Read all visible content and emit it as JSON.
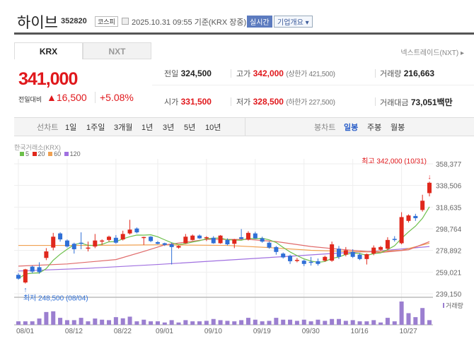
{
  "header": {
    "title": "하이브",
    "code": "352820",
    "market": "코스피",
    "datetime": "2025.10.31 09:55 기준(KRX 장중)",
    "realtime": "실시간",
    "company_info": "기업개요 ▾"
  },
  "tabs": [
    {
      "label": "KRX",
      "active": true
    },
    {
      "label": "NXT",
      "active": false
    }
  ],
  "nxt_link": "넥스트레이드(NXT) ▸",
  "quote": {
    "price": "341,000",
    "change_label": "전일대비",
    "change": "▲16,500",
    "change_pct": "+5.08%",
    "prev_label": "전일",
    "prev": "324,500",
    "high_label": "고가",
    "high": "342,000",
    "upper_limit": "(상한가 421,500)",
    "volume_label": "거래량",
    "volume": "216,663",
    "open_label": "시가",
    "open": "331,500",
    "low_label": "저가",
    "low": "328,500",
    "lower_limit": "(하한가 227,500)",
    "amount_label": "거래대금",
    "amount": "73,051",
    "amount_unit": "백만"
  },
  "toolbar": {
    "line_label": "선차트",
    "line_periods": [
      "1일",
      "1주일",
      "3개월",
      "1년",
      "3년",
      "5년",
      "10년"
    ],
    "candle_label": "봉차트",
    "candle_periods": [
      "일봉",
      "주봉",
      "월봉"
    ],
    "active_candle": "일봉"
  },
  "colors": {
    "up": "#e0281c",
    "down": "#2f6fd6",
    "ma5": "#6cbf4a",
    "ma20": "#e06a6a",
    "ma60": "#f0a050",
    "ma120": "#a070e0",
    "volume": "#9b7fd0"
  },
  "chart_data": {
    "type": "candlestick",
    "source": "한국거래소(KRX)",
    "legend": [
      "5",
      "20",
      "60",
      "120"
    ],
    "ylim": [
      239150,
      358377
    ],
    "y_ticks": [
      "358,377",
      "338,506",
      "318,635",
      "298,764",
      "278,892",
      "259,021",
      "239,150"
    ],
    "x_ticks": [
      {
        "i": 0,
        "label": "08/01"
      },
      {
        "i": 7,
        "label": "08/12"
      },
      {
        "i": 14,
        "label": "08/22"
      },
      {
        "i": 20,
        "label": "09/01"
      },
      {
        "i": 27,
        "label": "09/10"
      },
      {
        "i": 34,
        "label": "09/19"
      },
      {
        "i": 41,
        "label": "09/30"
      },
      {
        "i": 48,
        "label": "10/16"
      },
      {
        "i": 55,
        "label": "10/27"
      }
    ],
    "max_note": "최고 342,000 (10/31)",
    "min_note": "최저 248,500 (08/04)",
    "volume_label": "거래량",
    "ohlc": [
      [
        256500,
        258000,
        252000,
        253000
      ],
      [
        249500,
        262000,
        248500,
        261500
      ],
      [
        264000,
        265000,
        258000,
        259500
      ],
      [
        263500,
        268000,
        257500,
        259000
      ],
      [
        272000,
        281000,
        270000,
        278000
      ],
      [
        281500,
        295000,
        279000,
        291500
      ],
      [
        294500,
        295500,
        287000,
        289000
      ],
      [
        288000,
        289000,
        281500,
        282500
      ],
      [
        285000,
        286000,
        276000,
        280000
      ],
      [
        286000,
        295500,
        280000,
        285000
      ],
      [
        280500,
        287000,
        278000,
        281500
      ],
      [
        282500,
        294000,
        281000,
        288000
      ],
      [
        287000,
        289000,
        284000,
        288000
      ],
      [
        288500,
        292500,
        287000,
        291500
      ],
      [
        290500,
        293000,
        285000,
        286000
      ],
      [
        289000,
        297000,
        288000,
        294000
      ],
      [
        294500,
        307000,
        293500,
        298000
      ],
      [
        299000,
        300000,
        294500,
        295500
      ],
      [
        290800,
        291500,
        284000,
        291200
      ],
      [
        291500,
        292000,
        286500,
        287500
      ],
      [
        286500,
        287500,
        284500,
        285000
      ],
      [
        285500,
        286000,
        283000,
        284000
      ],
      [
        284500,
        286000,
        266000,
        282000
      ],
      [
        281500,
        283500,
        280500,
        283000
      ],
      [
        285500,
        294000,
        285000,
        291500
      ],
      [
        288500,
        293500,
        288000,
        292500
      ],
      [
        292500,
        293500,
        289500,
        290000
      ],
      [
        290500,
        292000,
        287500,
        291000
      ],
      [
        290500,
        292000,
        285000,
        285500
      ],
      [
        285500,
        293000,
        285000,
        292500
      ],
      [
        288500,
        290000,
        283500,
        284500
      ],
      [
        285000,
        289500,
        281000,
        289000
      ],
      [
        291000,
        298500,
        289000,
        289500
      ],
      [
        289000,
        296500,
        288000,
        295000
      ],
      [
        294500,
        296000,
        289500,
        290000
      ],
      [
        290000,
        291500,
        286000,
        287000
      ],
      [
        286000,
        287000,
        280500,
        281500
      ],
      [
        282000,
        283000,
        275000,
        277500
      ],
      [
        276000,
        277000,
        271500,
        272500
      ],
      [
        274000,
        275000,
        266500,
        269000
      ],
      [
        269800,
        272000,
        268000,
        270200
      ],
      [
        269500,
        270500,
        264500,
        266500
      ],
      [
        268500,
        273000,
        265000,
        267500
      ],
      [
        269000,
        271500,
        265000,
        266500
      ],
      [
        269500,
        274000,
        268500,
        273000
      ],
      [
        269500,
        287000,
        268500,
        284500
      ],
      [
        280500,
        283000,
        271000,
        273000
      ],
      [
        275000,
        282000,
        273500,
        279000
      ],
      [
        277500,
        280000,
        272000,
        273000
      ],
      [
        275000,
        276500,
        270000,
        271000
      ],
      [
        271000,
        276000,
        266000,
        275500
      ],
      [
        276000,
        283500,
        274500,
        281500
      ],
      [
        279500,
        283000,
        278500,
        282000
      ],
      [
        280500,
        291000,
        279500,
        288500
      ],
      [
        289500,
        292000,
        287000,
        288500
      ],
      [
        285500,
        314000,
        284500,
        309500
      ],
      [
        306000,
        312000,
        304500,
        311000
      ],
      [
        310500,
        312500,
        306000,
        308500
      ],
      [
        316000,
        330000,
        314500,
        324500
      ],
      [
        331500,
        342000,
        328500,
        341000
      ]
    ],
    "volume": [
      162000,
      162000,
      162000,
      292000,
      594000,
      626000,
      324000,
      216000,
      216000,
      324000,
      162000,
      292000,
      238000,
      216000,
      356000,
      302000,
      378000,
      162000,
      238000,
      162000,
      162000,
      108000,
      216000,
      108000,
      216000,
      162000,
      162000,
      184000,
      270000,
      216000,
      184000,
      162000,
      216000,
      324000,
      238000,
      162000,
      184000,
      324000,
      238000,
      238000,
      184000,
      238000,
      162000,
      238000,
      184000,
      270000,
      270000,
      184000,
      216000,
      162000,
      162000,
      216000,
      108000,
      324000,
      162000,
      1080000,
      540000,
      356000,
      778000,
      216663
    ],
    "ma20": [
      [
        0,
        264500
      ],
      [
        7,
        266500
      ],
      [
        14,
        270500
      ],
      [
        18,
        278000
      ],
      [
        21,
        284000
      ],
      [
        27,
        289000
      ],
      [
        33,
        289000
      ],
      [
        37,
        287000
      ],
      [
        42,
        282500
      ],
      [
        46,
        280000
      ],
      [
        52,
        277000
      ],
      [
        56,
        279500
      ],
      [
        59,
        287000
      ]
    ],
    "ma60": [
      [
        0,
        283500
      ],
      [
        10,
        283500
      ],
      [
        20,
        284000
      ],
      [
        30,
        283500
      ],
      [
        36,
        281500
      ],
      [
        42,
        279000
      ],
      [
        50,
        277500
      ],
      [
        55,
        279000
      ],
      [
        59,
        285500
      ]
    ],
    "ma120": [
      [
        0,
        260000
      ],
      [
        10,
        262500
      ],
      [
        20,
        266000
      ],
      [
        30,
        270000
      ],
      [
        40,
        274000
      ],
      [
        46,
        276500
      ],
      [
        52,
        278500
      ],
      [
        59,
        282500
      ]
    ]
  }
}
